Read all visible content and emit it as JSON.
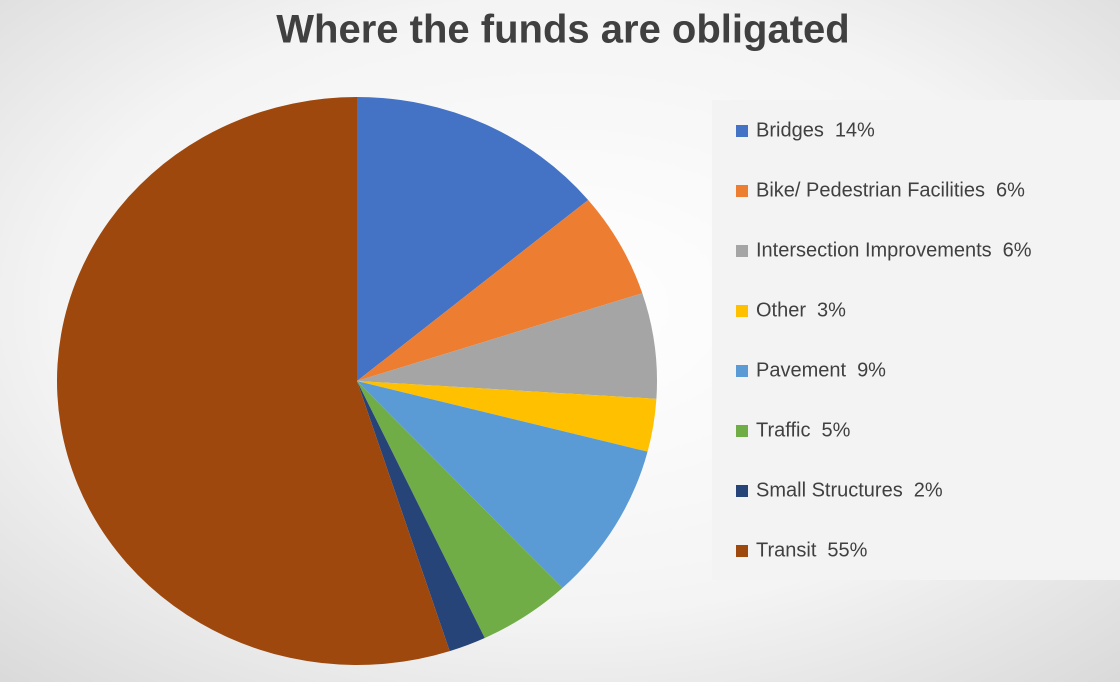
{
  "chart_data": {
    "type": "pie",
    "title": "Where the funds are obligated",
    "categories": [
      "Bridges",
      "Bike/ Pedestrian Facilities",
      "Intersection Improvements",
      "Other",
      "Pavement",
      "Traffic",
      "Small Structures",
      "Transit"
    ],
    "values": [
      14,
      6,
      6,
      3,
      9,
      5,
      2,
      55
    ],
    "value_labels": [
      "14%",
      "6%",
      "6%",
      "3%",
      "9%",
      "5%",
      "2%",
      "55%"
    ],
    "colors": [
      "#4472c4",
      "#ed7d31",
      "#a5a5a5",
      "#ffc000",
      "#5b9bd5",
      "#70ad47",
      "#264478",
      "#9e480e"
    ],
    "legend": "right"
  }
}
